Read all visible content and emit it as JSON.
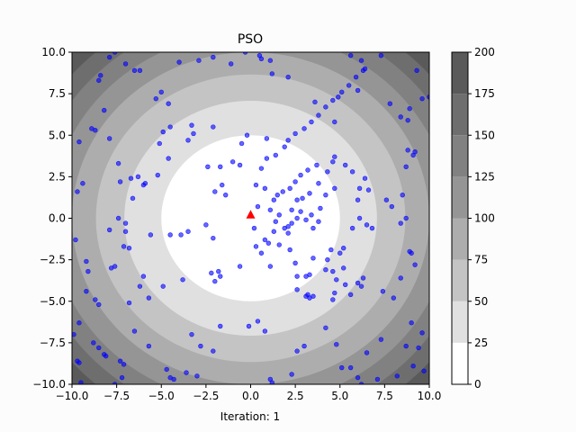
{
  "chart_data": {
    "type": "scatter",
    "title": "PSO",
    "xlabel": "Iteration: 1",
    "ylabel": "",
    "xlim": [
      -10,
      10
    ],
    "ylim": [
      -10,
      10
    ],
    "xticks": [
      "−10.0",
      "−7.5",
      "−5.0",
      "−2.5",
      "0.0",
      "2.5",
      "5.0",
      "7.5",
      "10.0"
    ],
    "xtick_values": [
      -10,
      -7.5,
      -5,
      -2.5,
      0,
      2.5,
      5,
      7.5,
      10
    ],
    "yticks": [
      "10.0",
      "7.5",
      "5.0",
      "2.5",
      "0.0",
      "−2.5",
      "−5.0",
      "−7.5",
      "−10.0"
    ],
    "ytick_values": [
      10,
      7.5,
      5,
      2.5,
      0,
      -2.5,
      -5,
      -7.5,
      -10
    ],
    "contour": {
      "function": "x^2 + y^2",
      "levels": [
        0,
        25,
        50,
        75,
        100,
        125,
        150,
        175,
        200
      ],
      "colors": [
        "#ffffff",
        "#e0e0e0",
        "#c4c4c4",
        "#adadad",
        "#959595",
        "#818181",
        "#6e6e6e",
        "#5a5a5a"
      ]
    },
    "colorbar": {
      "ticks": [
        "0",
        "25",
        "50",
        "75",
        "100",
        "125",
        "150",
        "175",
        "200"
      ],
      "range": [
        0,
        200
      ]
    },
    "best": {
      "x": 0.0,
      "y": 0.2,
      "color": "#ff0000",
      "marker": "triangle"
    },
    "particle_color": "#0000ff",
    "particles": [
      [
        -9.7,
        -8.6
      ],
      [
        -9.6,
        -8.7
      ],
      [
        -9.5,
        -9.9
      ],
      [
        -9.9,
        -7.0
      ],
      [
        -9.2,
        -2.6
      ],
      [
        -9.1,
        -3.2
      ],
      [
        -8.8,
        -7.5
      ],
      [
        -9.6,
        -6.3
      ],
      [
        -9.8,
        -1.3
      ],
      [
        -9.7,
        1.6
      ],
      [
        -9.4,
        2.1
      ],
      [
        -9.6,
        4.6
      ],
      [
        -9.2,
        -4.4
      ],
      [
        -8.5,
        -7.8
      ],
      [
        -8.1,
        -8.3
      ],
      [
        -8.2,
        -8.2
      ],
      [
        -8.7,
        5.3
      ],
      [
        -8.9,
        5.4
      ],
      [
        -8.7,
        -4.9
      ],
      [
        -8.5,
        -5.2
      ],
      [
        -8.2,
        6.5
      ],
      [
        -7.9,
        4.8
      ],
      [
        -7.6,
        -10.0
      ],
      [
        -7.2,
        -9.6
      ],
      [
        -7.3,
        -8.6
      ],
      [
        -7.1,
        -8.8
      ],
      [
        -8.4,
        8.6
      ],
      [
        -8.5,
        8.3
      ],
      [
        -7.9,
        9.7
      ],
      [
        -7.6,
        10.0
      ],
      [
        -7.0,
        9.3
      ],
      [
        -6.5,
        8.9
      ],
      [
        -6.2,
        8.9
      ],
      [
        -5.3,
        7.2
      ],
      [
        -5.0,
        7.6
      ],
      [
        -4.6,
        6.9
      ],
      [
        -4.0,
        9.4
      ],
      [
        -2.9,
        9.5
      ],
      [
        -2.1,
        9.7
      ],
      [
        -1.1,
        9.3
      ],
      [
        -0.3,
        10.0
      ],
      [
        0.5,
        9.8
      ],
      [
        0.6,
        9.6
      ],
      [
        1.1,
        9.5
      ],
      [
        1.2,
        8.7
      ],
      [
        2.1,
        8.5
      ],
      [
        3.6,
        7.0
      ],
      [
        4.7,
        5.8
      ],
      [
        4.9,
        7.3
      ],
      [
        5.6,
        9.8
      ],
      [
        6.2,
        9.5
      ],
      [
        6.0,
        7.7
      ],
      [
        6.4,
        9.0
      ],
      [
        7.3,
        9.8
      ],
      [
        7.8,
        6.9
      ],
      [
        8.4,
        6.1
      ],
      [
        8.9,
        6.6
      ],
      [
        8.8,
        5.9
      ],
      [
        9.3,
        8.9
      ],
      [
        9.6,
        7.2
      ],
      [
        10.0,
        7.3
      ],
      [
        8.8,
        4.1
      ],
      [
        9.1,
        3.8
      ],
      [
        8.7,
        3.1
      ],
      [
        9.2,
        4.0
      ],
      [
        8.5,
        1.4
      ],
      [
        8.7,
        0.0
      ],
      [
        7.9,
        0.7
      ],
      [
        7.6,
        1.1
      ],
      [
        8.4,
        -0.3
      ],
      [
        8.9,
        -2.0
      ],
      [
        9.0,
        -2.1
      ],
      [
        9.2,
        -2.8
      ],
      [
        8.4,
        -3.6
      ],
      [
        8.0,
        -4.8
      ],
      [
        7.4,
        -4.4
      ],
      [
        9.0,
        -6.3
      ],
      [
        9.6,
        -6.9
      ],
      [
        8.7,
        -7.7
      ],
      [
        9.4,
        -7.8
      ],
      [
        9.1,
        -8.9
      ],
      [
        9.7,
        -9.2
      ],
      [
        8.2,
        -9.5
      ],
      [
        7.3,
        -7.3
      ],
      [
        6.5,
        -8.1
      ],
      [
        7.1,
        -9.7
      ],
      [
        5.1,
        -9.0
      ],
      [
        5.6,
        -9.0
      ],
      [
        6.2,
        -10.0
      ],
      [
        6.0,
        -9.6
      ],
      [
        4.8,
        -7.6
      ],
      [
        4.2,
        -6.6
      ],
      [
        3.0,
        -7.7
      ],
      [
        2.6,
        -8.0
      ],
      [
        2.3,
        -9.4
      ],
      [
        1.2,
        -9.9
      ],
      [
        1.1,
        -9.7
      ],
      [
        0.8,
        -6.8
      ],
      [
        0.4,
        -6.2
      ],
      [
        -0.1,
        -6.5
      ],
      [
        -1.7,
        -6.5
      ],
      [
        -2.1,
        -8.0
      ],
      [
        -2.8,
        -7.7
      ],
      [
        -3.3,
        -7.0
      ],
      [
        -3.0,
        -9.5
      ],
      [
        -3.6,
        -9.3
      ],
      [
        -4.5,
        -9.6
      ],
      [
        -4.7,
        -9.1
      ],
      [
        -4.3,
        -9.7
      ],
      [
        -5.7,
        -7.7
      ],
      [
        -6.5,
        -6.8
      ],
      [
        -6.8,
        -5.1
      ],
      [
        -5.7,
        -4.8
      ],
      [
        -6.2,
        -4.1
      ],
      [
        -6.0,
        -3.5
      ],
      [
        -4.9,
        -4.1
      ],
      [
        -3.8,
        -3.7
      ],
      [
        -2.2,
        -3.3
      ],
      [
        -2.0,
        -3.8
      ],
      [
        -7.6,
        -2.9
      ],
      [
        -7.8,
        -3.0
      ],
      [
        -7.9,
        -0.7
      ],
      [
        -7.0,
        -0.8
      ],
      [
        -7.1,
        -1.7
      ],
      [
        -6.8,
        -1.8
      ],
      [
        -5.6,
        -1.0
      ],
      [
        -4.5,
        -1.0
      ],
      [
        -3.9,
        -1.0
      ],
      [
        -2.5,
        -0.4
      ],
      [
        -3.5,
        -0.8
      ],
      [
        -2.1,
        -1.2
      ],
      [
        -7.0,
        -0.3
      ],
      [
        -7.4,
        0.0
      ],
      [
        -6.6,
        1.2
      ],
      [
        -6.7,
        2.4
      ],
      [
        -7.3,
        2.2
      ],
      [
        -7.4,
        3.3
      ],
      [
        -6.3,
        2.5
      ],
      [
        -6.0,
        2.0
      ],
      [
        -5.9,
        2.1
      ],
      [
        -5.2,
        2.6
      ],
      [
        -4.6,
        3.6
      ],
      [
        -5.1,
        4.5
      ],
      [
        -4.5,
        5.5
      ],
      [
        -4.9,
        5.2
      ],
      [
        -3.5,
        4.7
      ],
      [
        -3.3,
        5.6
      ],
      [
        -3.2,
        5.1
      ],
      [
        -2.1,
        5.5
      ],
      [
        -2.4,
        3.1
      ],
      [
        -2.0,
        1.6
      ],
      [
        -1.6,
        2.0
      ],
      [
        -1.7,
        3.1
      ],
      [
        -1.4,
        1.4
      ],
      [
        -1.0,
        3.4
      ],
      [
        -0.6,
        3.2
      ],
      [
        -0.5,
        4.5
      ],
      [
        -0.2,
        5.0
      ],
      [
        0.9,
        4.8
      ],
      [
        0.3,
        2.0
      ],
      [
        0.4,
        0.7
      ],
      [
        0.2,
        -0.6
      ],
      [
        0.3,
        -1.7
      ],
      [
        1.0,
        -1.5
      ],
      [
        0.6,
        -2.1
      ],
      [
        -1.8,
        -3.2
      ],
      [
        -1.7,
        -3.5
      ],
      [
        -0.6,
        -2.9
      ],
      [
        1.1,
        -2.9
      ],
      [
        2.2,
        -1.9
      ],
      [
        2.5,
        -2.7
      ],
      [
        2.6,
        -3.5
      ],
      [
        3.3,
        -3.4
      ],
      [
        2.6,
        -4.3
      ],
      [
        3.2,
        -4.6
      ],
      [
        3.3,
        -4.8
      ],
      [
        3.5,
        -4.7
      ],
      [
        3.1,
        -4.7
      ],
      [
        3.1,
        -3.5
      ],
      [
        3.5,
        -2.4
      ],
      [
        4.5,
        -1.9
      ],
      [
        4.3,
        -2.5
      ],
      [
        4.2,
        -3.1
      ],
      [
        4.6,
        -3.2
      ],
      [
        4.8,
        -3.7
      ],
      [
        4.7,
        -4.5
      ],
      [
        4.6,
        -4.9
      ],
      [
        5.3,
        -4.0
      ],
      [
        5.6,
        -4.6
      ],
      [
        6.0,
        -3.9
      ],
      [
        6.2,
        -4.1
      ],
      [
        6.3,
        -3.6
      ],
      [
        5.2,
        -3.0
      ],
      [
        5.0,
        -2.1
      ],
      [
        5.2,
        -1.8
      ],
      [
        5.7,
        -0.6
      ],
      [
        6.5,
        -0.4
      ],
      [
        6.8,
        -0.6
      ],
      [
        6.1,
        0.0
      ],
      [
        6.0,
        1.1
      ],
      [
        6.6,
        1.7
      ],
      [
        6.1,
        1.8
      ],
      [
        6.4,
        2.4
      ],
      [
        5.7,
        2.8
      ],
      [
        5.3,
        3.2
      ],
      [
        4.6,
        3.4
      ],
      [
        4.7,
        3.7
      ],
      [
        4.3,
        2.8
      ],
      [
        4.7,
        1.8
      ],
      [
        4.2,
        1.4
      ],
      [
        3.9,
        0.6
      ],
      [
        3.4,
        0.2
      ],
      [
        3.8,
        -0.2
      ],
      [
        3.5,
        -0.6
      ],
      [
        3.1,
        -0.1
      ],
      [
        2.8,
        0.4
      ],
      [
        2.3,
        0.5
      ],
      [
        2.6,
        0.0
      ],
      [
        2.3,
        -0.3
      ],
      [
        2.1,
        -0.5
      ],
      [
        1.9,
        -0.6
      ],
      [
        2.1,
        -0.9
      ],
      [
        1.6,
        -1.6
      ],
      [
        0.8,
        -1.3
      ],
      [
        1.3,
        -0.8
      ],
      [
        1.4,
        -0.2
      ],
      [
        1.6,
        0.2
      ],
      [
        1.1,
        0.5
      ],
      [
        1.3,
        1.1
      ],
      [
        1.5,
        1.4
      ],
      [
        1.8,
        1.6
      ],
      [
        2.2,
        1.8
      ],
      [
        2.5,
        2.2
      ],
      [
        2.8,
        2.6
      ],
      [
        3.2,
        2.9
      ],
      [
        3.7,
        3.2
      ],
      [
        3.8,
        2.1
      ],
      [
        3.3,
        1.5
      ],
      [
        2.9,
        1.2
      ],
      [
        2.6,
        1.1
      ],
      [
        0.8,
        1.8
      ],
      [
        0.6,
        3.0
      ],
      [
        0.9,
        3.6
      ],
      [
        1.4,
        3.8
      ],
      [
        1.9,
        4.3
      ],
      [
        2.1,
        4.7
      ],
      [
        2.5,
        5.1
      ],
      [
        3.0,
        5.4
      ],
      [
        3.4,
        5.8
      ],
      [
        3.8,
        6.2
      ],
      [
        4.2,
        6.7
      ],
      [
        4.6,
        7.1
      ],
      [
        5.1,
        7.6
      ],
      [
        5.5,
        8.0
      ],
      [
        5.9,
        8.5
      ],
      [
        6.3,
        8.9
      ]
    ]
  }
}
